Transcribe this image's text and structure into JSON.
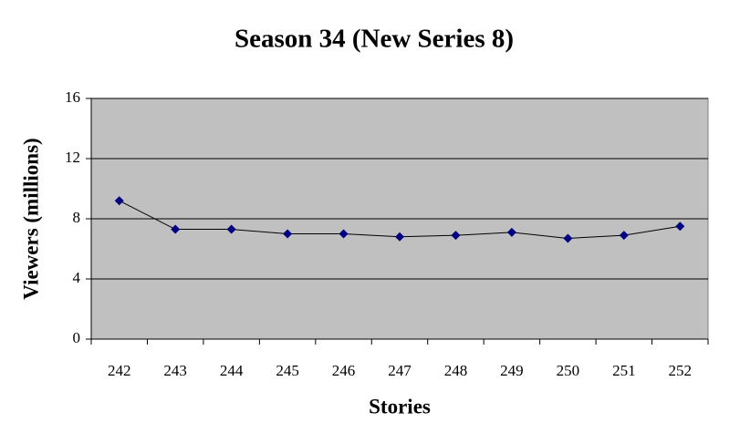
{
  "chart_data": {
    "type": "line",
    "title": "Season 34 (New Series 8)",
    "xlabel": "Stories",
    "ylabel": "Viewers (millions)",
    "categories": [
      "242",
      "243",
      "244",
      "245",
      "246",
      "247",
      "248",
      "249",
      "250",
      "251",
      "252"
    ],
    "series": [
      {
        "name": "Viewers",
        "color": "#000080",
        "values": [
          9.2,
          7.3,
          7.3,
          7.0,
          7.0,
          6.8,
          6.9,
          7.1,
          6.7,
          6.9,
          7.5
        ]
      }
    ],
    "ylim": [
      0,
      16
    ],
    "yticks": [
      0,
      4,
      8,
      12,
      16
    ],
    "grid": true,
    "plot_background": "#c0c0c0"
  }
}
